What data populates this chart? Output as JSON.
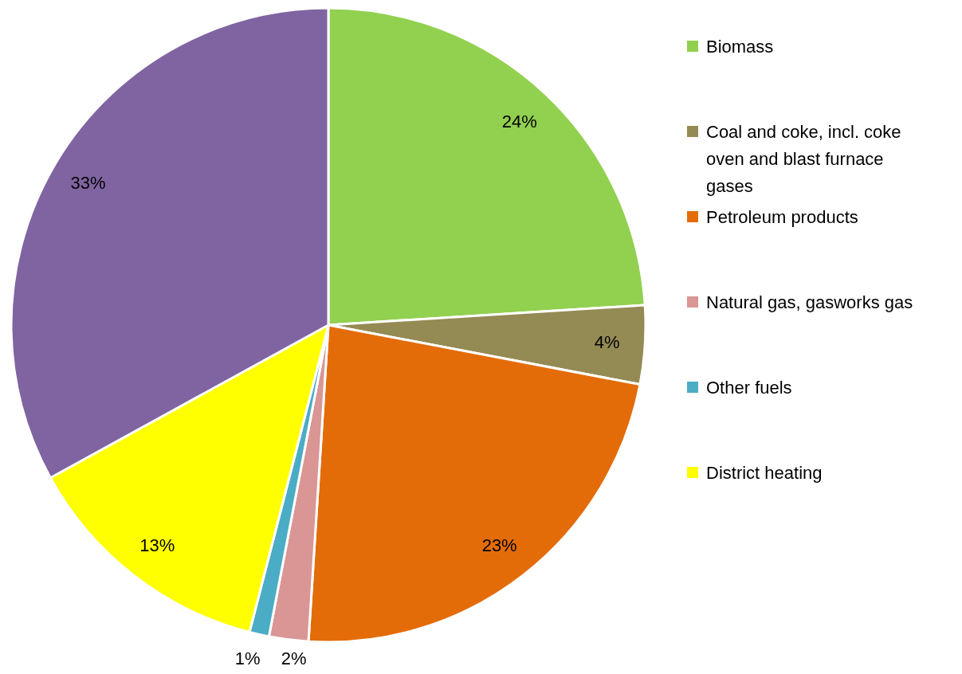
{
  "chart_data": {
    "type": "pie",
    "categories": [
      "Biomass",
      "Coal and coke, incl. coke oven and blast furnace gases",
      "Petroleum products",
      "Natural gas, gasworks gas",
      "Other fuels",
      "District heating",
      null
    ],
    "values": [
      24,
      4,
      23,
      2,
      1,
      13,
      33
    ],
    "colors": [
      "#92d050",
      "#948a54",
      "#e36c09",
      "#d99694",
      "#4bacc6",
      "#ffff00",
      "#8064a2"
    ],
    "value_labels": [
      "24%",
      "4%",
      "23%",
      "2%",
      "1%",
      "13%",
      "33%"
    ],
    "legend": "right"
  }
}
